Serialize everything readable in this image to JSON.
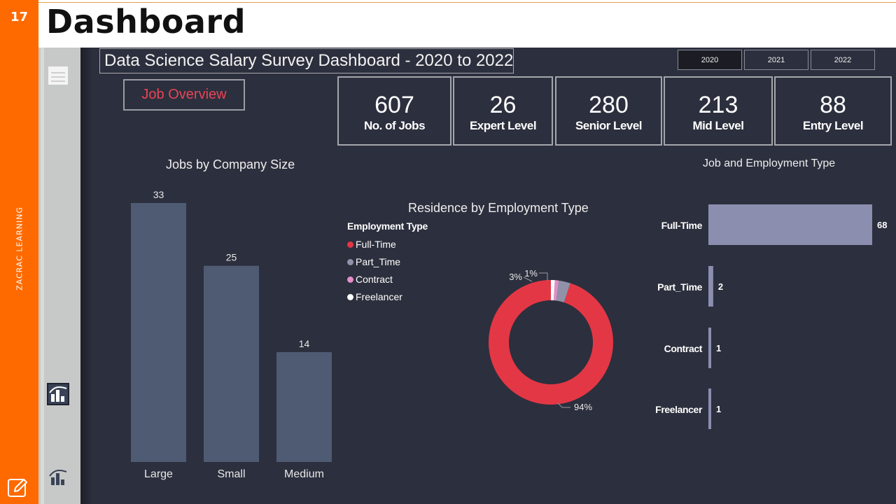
{
  "slide": {
    "number": "17",
    "side_label": "ZACRAC LEARNING",
    "title": "Dashboard"
  },
  "colors": {
    "orange": "#ff6a00",
    "dashboard_bg": "#2c2f3d",
    "bar_fill": "#4e5b73",
    "hbar_fill": "#8b8eaf",
    "accent_red": "#e84556",
    "full_time": "#e43745",
    "part_time": "#8f92a8",
    "contract": "#e38ec9",
    "freelancer": "#ffffff"
  },
  "dashboard": {
    "title": "Data Science Salary Survey Dashboard - 2020 to 2022",
    "years": [
      {
        "label": "2020",
        "selected": true
      },
      {
        "label": "2021",
        "selected": false
      },
      {
        "label": "2022",
        "selected": false
      }
    ],
    "job_overview_button": "Job Overview",
    "kpis": [
      {
        "value": "607",
        "label": "No. of Jobs"
      },
      {
        "value": "26",
        "label": "Expert Level"
      },
      {
        "value": "280",
        "label": "Senior Level"
      },
      {
        "value": "213",
        "label": "Mid Level"
      },
      {
        "value": "88",
        "label": "Entry Level"
      }
    ]
  },
  "icons": [
    "page-icon",
    "report-icon",
    "edit-icon"
  ],
  "chart_data": [
    {
      "type": "bar",
      "title": "Jobs by Company Size",
      "categories": [
        "Large",
        "Small",
        "Medium"
      ],
      "values": [
        33,
        25,
        14
      ],
      "ylim": [
        0,
        33
      ],
      "grid": false,
      "data_labels": true
    },
    {
      "type": "pie",
      "subtype": "donut",
      "title": "Residence by Employment Type",
      "legend_title": "Employment Type",
      "legend_position": "top-left",
      "categories": [
        "Full-Time",
        "Part_Time",
        "Contract",
        "Freelancer"
      ],
      "values": [
        94,
        3,
        1,
        1
      ],
      "slice_labels": [
        "94%",
        "3%",
        "1%",
        ""
      ]
    },
    {
      "type": "bar",
      "orientation": "horizontal",
      "title": "Job and Employment Type",
      "categories": [
        "Full-Time",
        "Part_Time",
        "Contract",
        "Freelancer"
      ],
      "values": [
        68,
        2,
        1,
        1
      ],
      "grid": false,
      "data_labels": true
    }
  ]
}
